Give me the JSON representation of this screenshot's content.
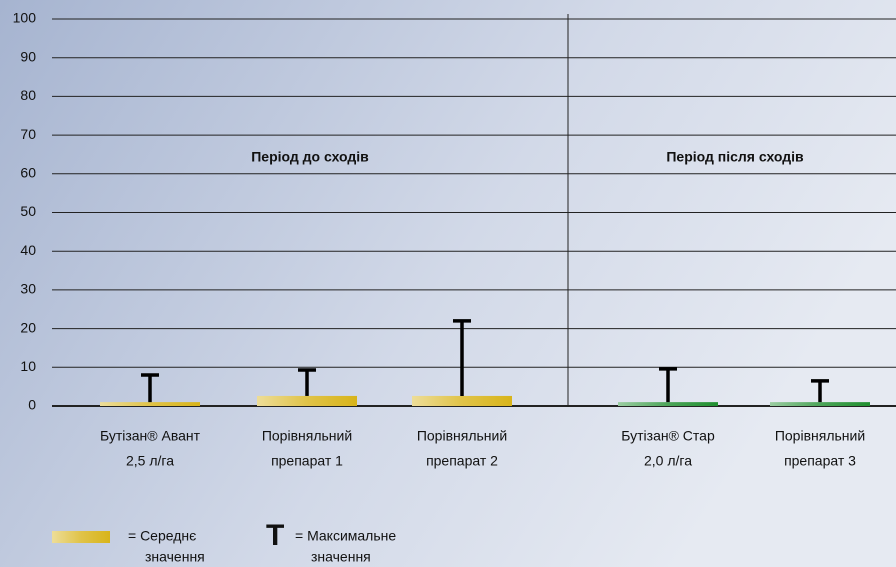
{
  "chart_data": {
    "type": "bar",
    "categories": [
      [
        "Бутізан® Авант",
        "2,5 л/га"
      ],
      [
        "Порівняльний",
        "препарат 1"
      ],
      [
        "Порівняльний",
        "препарат 2"
      ],
      [
        "Бутізан® Стар",
        "2,0 л/га"
      ],
      [
        "Порівняльний",
        "препарат 3"
      ]
    ],
    "values": [
      1,
      2.6,
      2.6,
      1,
      1
    ],
    "max_values": [
      8,
      9.3,
      22,
      9.6,
      6.5
    ],
    "colors": [
      "#d8b41a",
      "#d8b41a",
      "#d8b41a",
      "#1f8f2f",
      "#1f8f2f"
    ],
    "ylim": [
      0,
      100
    ],
    "yticks": [
      0,
      10,
      20,
      30,
      40,
      50,
      60,
      70,
      80,
      90,
      100
    ],
    "grid": true,
    "periods": [
      "Період до сходів",
      "Період після сходів"
    ],
    "legend": [
      [
        "= Середнє",
        "значення"
      ],
      [
        "T",
        "= Максимальне",
        "значення"
      ]
    ]
  }
}
